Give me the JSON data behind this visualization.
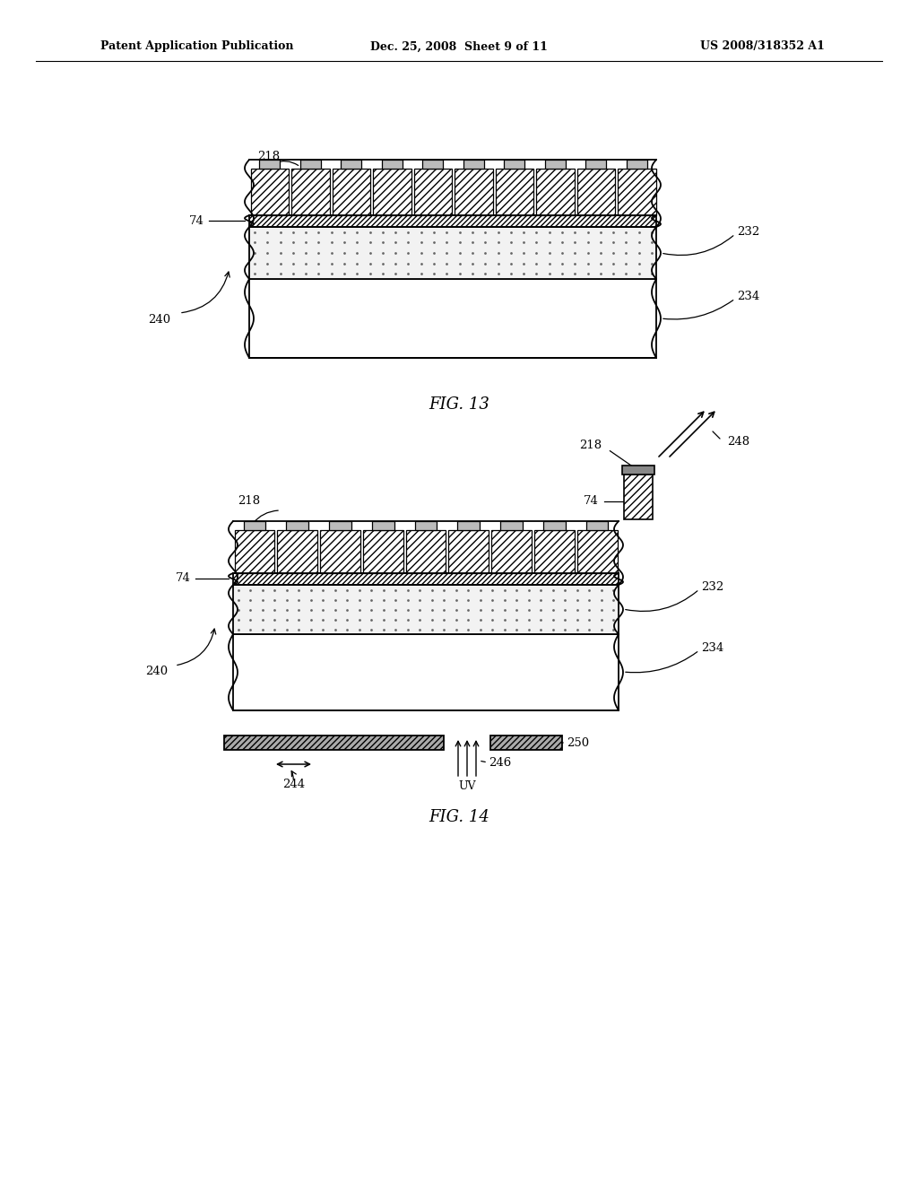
{
  "header_left": "Patent Application Publication",
  "header_mid": "Dec. 25, 2008  Sheet 9 of 11",
  "header_right": "US 2008/318352 A1",
  "fig13_caption": "FIG. 13",
  "fig14_caption": "FIG. 14",
  "bg_color": "#ffffff"
}
